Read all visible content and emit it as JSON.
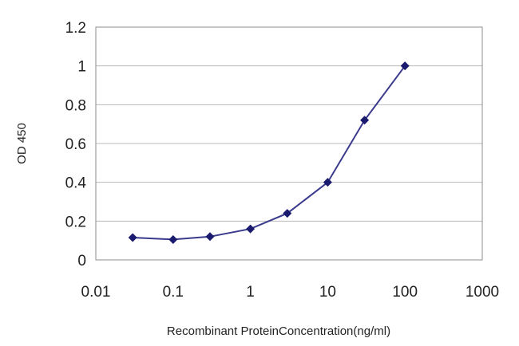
{
  "chart_data": {
    "type": "line",
    "title": "",
    "xlabel": "Recombinant ProteinConcentration(ng/ml)",
    "ylabel": "OD 450",
    "x_scale": "log",
    "xlim": [
      0.01,
      1000
    ],
    "ylim": [
      0,
      1.2
    ],
    "x_ticks": [
      "0.01",
      "0.1",
      "1",
      "10",
      "100",
      "1000"
    ],
    "y_ticks": [
      "0",
      "0.2",
      "0.4",
      "0.6",
      "0.8",
      "1",
      "1.2"
    ],
    "grid": "horizontal",
    "legend": "none",
    "series": [
      {
        "x": [
          0.03,
          0.1,
          0.3,
          1,
          3,
          10,
          30,
          100
        ],
        "y": [
          0.115,
          0.105,
          0.12,
          0.16,
          0.24,
          0.4,
          0.72,
          1.0
        ]
      }
    ],
    "colors": {
      "line": "#3a3a8c",
      "marker": "#1a1a6e",
      "grid": "#b8b8b8",
      "frame": "#8c8c8c"
    }
  }
}
